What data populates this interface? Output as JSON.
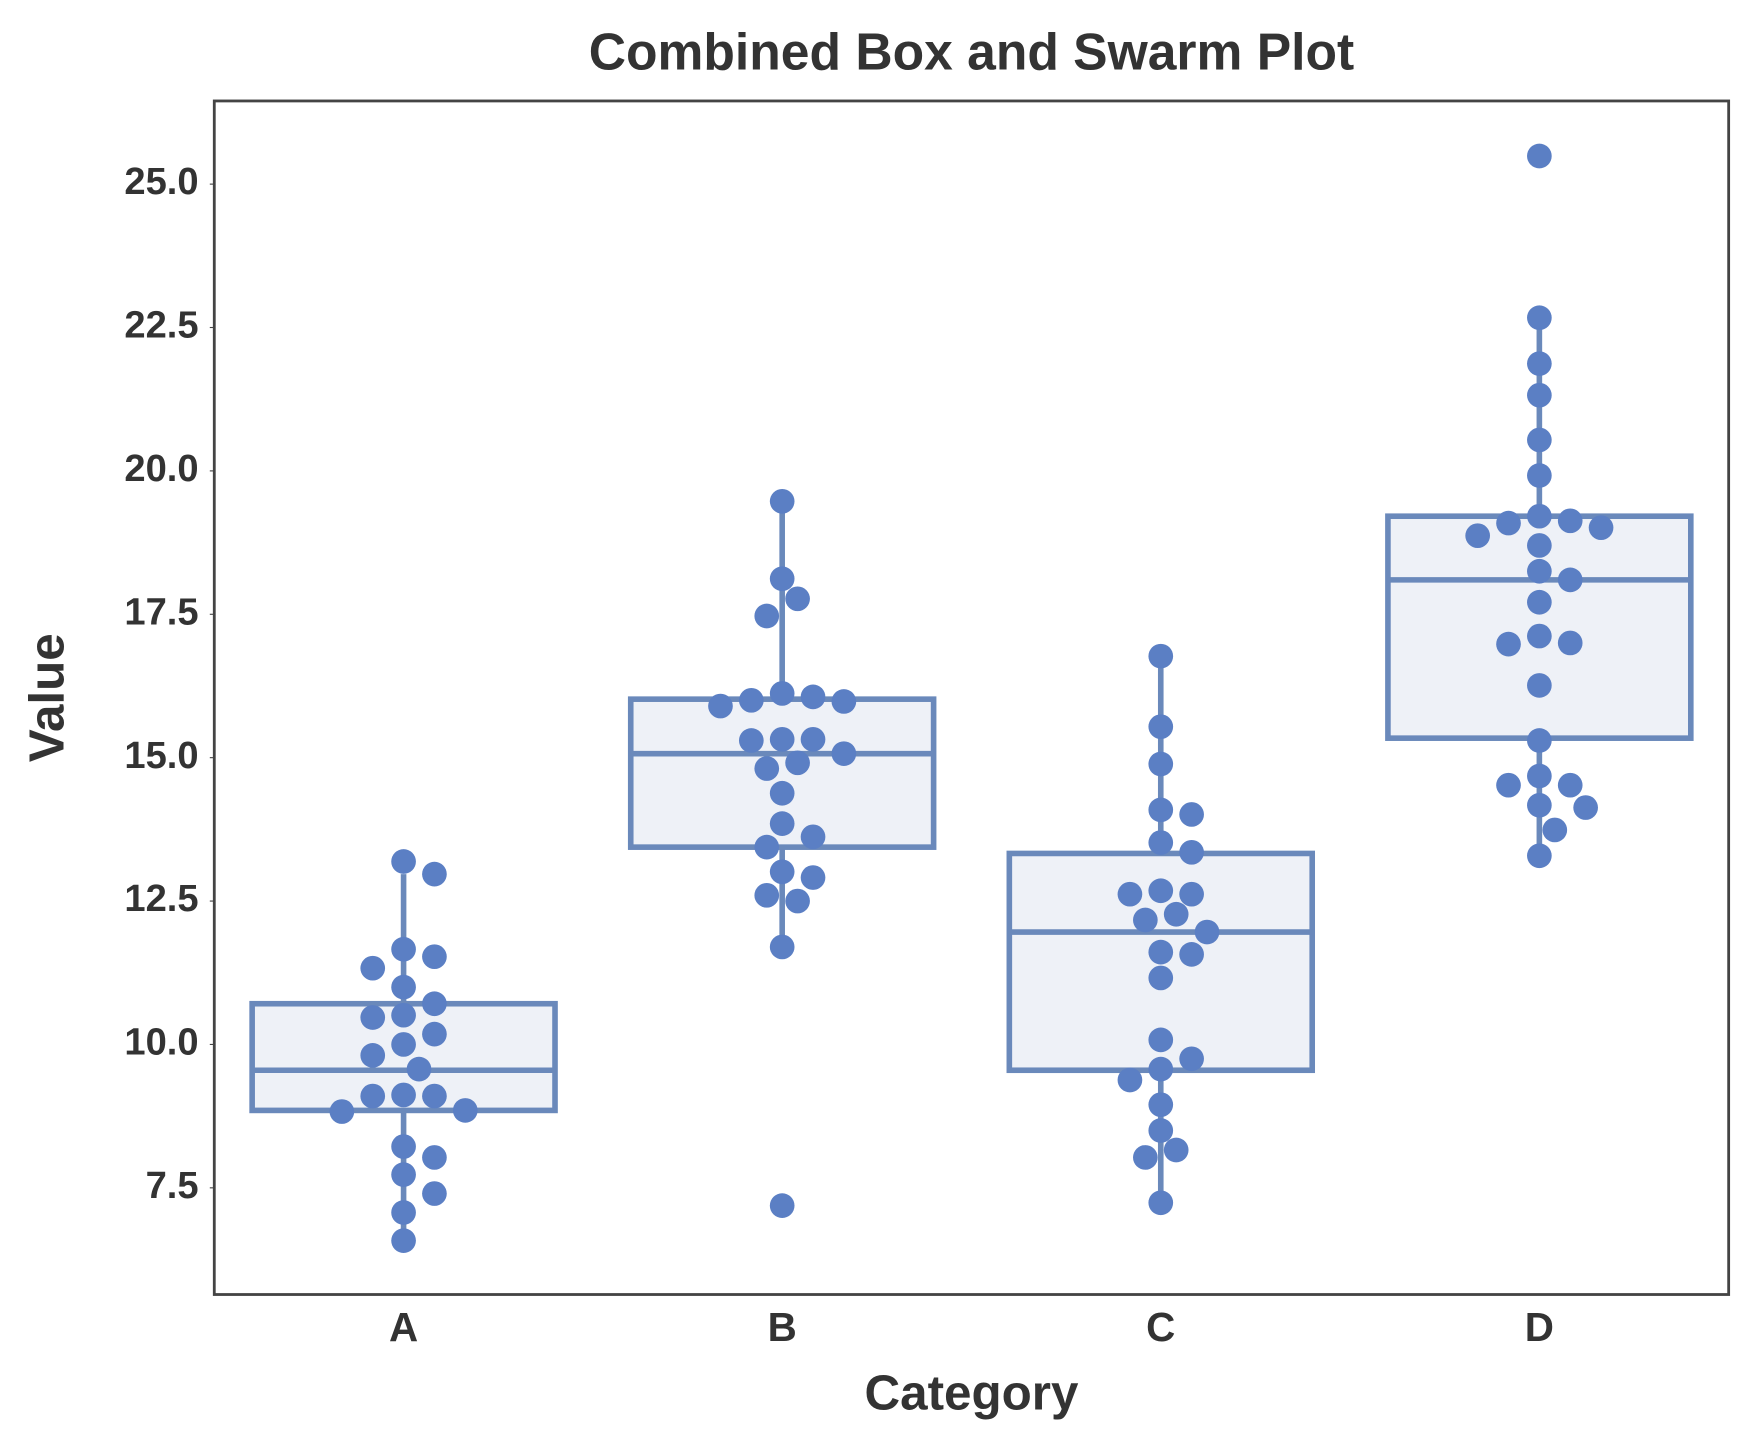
{
  "chart_data": {
    "type": "box_swarm",
    "title": "Combined Box and Swarm Plot",
    "x_label": "Category",
    "y_label": "Value",
    "categories": [
      "A",
      "B",
      "C",
      "D"
    ],
    "box_color": "#6a89bb",
    "box_fill": "#eef1f7",
    "point_color": "#5b7fc4",
    "boxes": [
      {
        "whisker_low": 6.58,
        "q1": 8.85,
        "median": 9.55,
        "q3": 10.71,
        "whisker_high": 12.97
      },
      {
        "whisker_low": 11.72,
        "q1": 13.44,
        "median": 15.07,
        "q3": 16.02,
        "whisker_high": 19.47
      },
      {
        "whisker_low": 7.24,
        "q1": 9.55,
        "median": 11.96,
        "q3": 13.33,
        "whisker_high": 16.77
      },
      {
        "whisker_low": 13.29,
        "q1": 15.34,
        "median": 18.1,
        "q3": 19.21,
        "whisker_high": 22.67
      }
    ],
    "points": [
      [
        13.19,
        12.97,
        11.66,
        11.53,
        11.33,
        11.0,
        10.71,
        10.51,
        10.47,
        10.18,
        10.0,
        9.81,
        9.57,
        9.12,
        9.1,
        9.1,
        8.85,
        8.83,
        8.22,
        8.03,
        7.73,
        7.4,
        7.07,
        6.58
      ],
      [
        19.47,
        18.12,
        17.77,
        17.47,
        16.12,
        16.06,
        16.0,
        15.98,
        15.9,
        15.32,
        15.32,
        15.3,
        15.07,
        14.91,
        14.81,
        14.38,
        13.85,
        13.62,
        13.44,
        13.01,
        12.91,
        12.6,
        12.5,
        11.7,
        7.19
      ],
      [
        16.77,
        15.54,
        14.89,
        14.09,
        14.01,
        13.52,
        13.35,
        12.68,
        12.62,
        12.62,
        12.27,
        12.17,
        11.96,
        11.61,
        11.57,
        11.16,
        10.08,
        9.75,
        9.57,
        9.38,
        8.95,
        8.5,
        8.16,
        8.03,
        7.24
      ],
      [
        25.49,
        22.67,
        21.87,
        21.32,
        20.54,
        19.92,
        19.21,
        19.13,
        19.09,
        19.01,
        18.87,
        18.7,
        18.25,
        18.1,
        17.71,
        17.12,
        17.0,
        16.98,
        16.26,
        15.3,
        14.68,
        14.52,
        14.52,
        14.17,
        14.13,
        13.74,
        13.29
      ]
    ],
    "ylim": [
      5.64,
      26.45
    ],
    "yticks": [
      7.5,
      {
        "value": 10,
        "label": "10.0"
      },
      12.5,
      {
        "value": 15,
        "label": "15.0"
      },
      17.5,
      {
        "value": 20,
        "label": "20.0"
      },
      22.5,
      {
        "value": 25,
        "label": "25.0"
      }
    ],
    "grid": false
  }
}
